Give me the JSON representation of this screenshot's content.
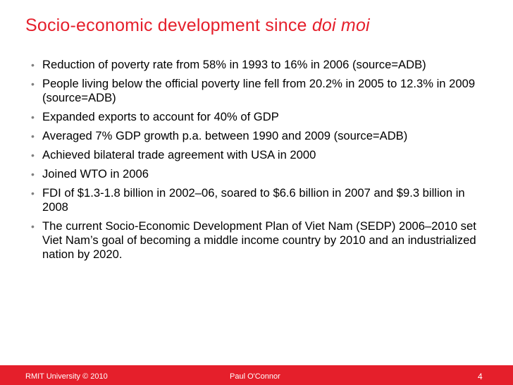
{
  "slide": {
    "title_text": "Socio-economic development since ",
    "title_emphasis": "doi moi",
    "bullet_symbol": "•",
    "bullets": [
      "Reduction of poverty rate from 58% in 1993 to 16% in 2006 (source=ADB)",
      "People living below the official poverty line fell from 20.2% in 2005 to 12.3% in 2009 (source=ADB)",
      "Expanded exports to account for 40% of GDP",
      "Averaged 7% GDP growth p.a. between 1990 and 2009 (source=ADB)",
      "Achieved bilateral trade agreement with USA in 2000",
      "Joined WTO in 2006",
      "FDI of $1.3-1.8 billion in 2002–06, soared to $6.6 billion in 2007 and $9.3 billion in 2008",
      "The current Socio-Economic Development Plan of Viet Nam (SEDP) 2006–2010 set Viet Nam’s goal of becoming a middle income country by 2010 and an industrialized nation by 2020."
    ]
  },
  "footer": {
    "left": "RMIT University © 2010",
    "center": "Paul O'Connor",
    "page_number": "4"
  },
  "colors": {
    "accent": "#e51f2b",
    "bullet_dot": "#7f7f7f"
  }
}
